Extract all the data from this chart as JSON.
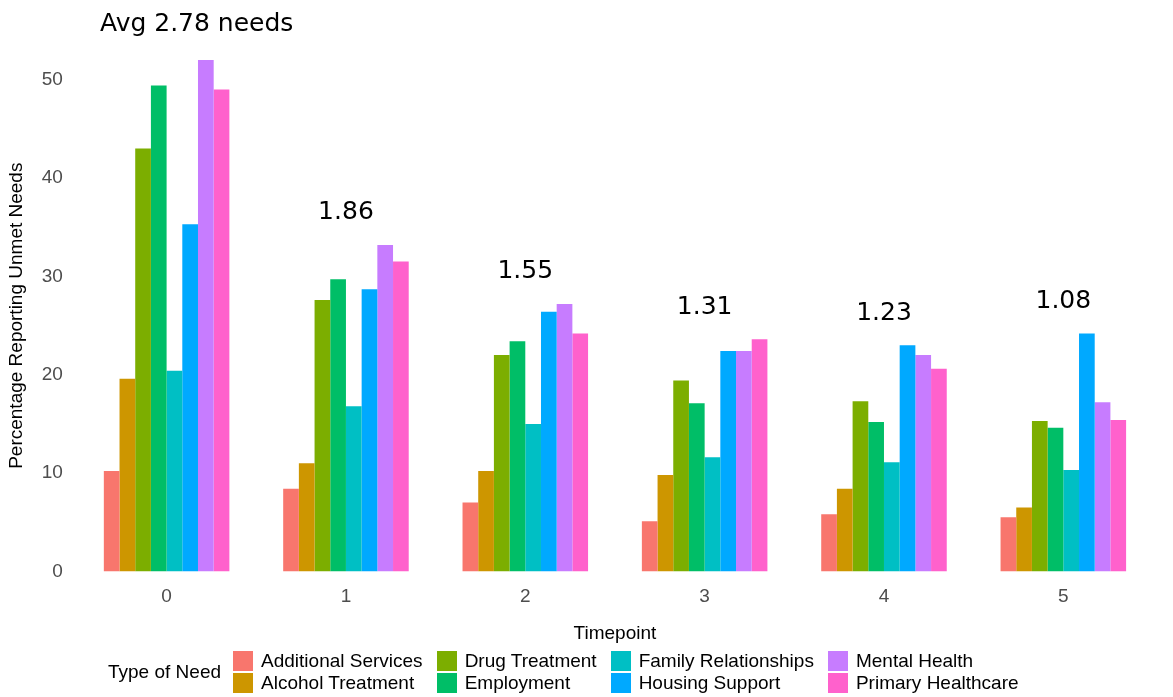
{
  "chart_data": {
    "type": "bar",
    "xlabel": "Timepoint",
    "ylabel": "Percentage Reporting Unmet Needs",
    "legend_title": "Type of Need",
    "categories": [
      "0",
      "1",
      "2",
      "3",
      "4",
      "5"
    ],
    "series": [
      {
        "name": "Additional Services",
        "color": "#f8766d",
        "values": [
          10.2,
          8.4,
          7,
          5.1,
          5.8,
          5.5
        ]
      },
      {
        "name": "Alcohol Treatment",
        "color": "#cd9600",
        "values": [
          19.6,
          11,
          10.2,
          9.8,
          8.4,
          6.5
        ]
      },
      {
        "name": "Drug Treatment",
        "color": "#7cae00",
        "values": [
          43,
          27.6,
          22,
          19.4,
          17.3,
          15.3
        ]
      },
      {
        "name": "Employment",
        "color": "#00be67",
        "values": [
          49.4,
          29.7,
          23.4,
          17.1,
          15.2,
          14.6
        ]
      },
      {
        "name": "Family Relationships",
        "color": "#00bfc4",
        "values": [
          20.4,
          16.8,
          15,
          11.6,
          11.1,
          10.3
        ]
      },
      {
        "name": "Housing Support",
        "color": "#00a9ff",
        "values": [
          35.3,
          28.7,
          26.4,
          22.4,
          23,
          24.2
        ]
      },
      {
        "name": "Mental Health",
        "color": "#c77cff",
        "values": [
          52,
          33.2,
          27.2,
          22.4,
          22,
          17.2
        ]
      },
      {
        "name": "Primary Healthcare",
        "color": "#ff61cc",
        "values": [
          49,
          31.5,
          24.2,
          23.6,
          20.6,
          15.4
        ]
      }
    ],
    "ylim": [
      0,
      52
    ],
    "yticks": [
      0,
      10,
      20,
      30,
      40,
      50
    ],
    "grid": false,
    "legend": "bottom",
    "annotations": [
      "Avg 2.78 needs",
      "1.86",
      "1.55",
      "1.31",
      "1.23",
      "1.08"
    ]
  }
}
